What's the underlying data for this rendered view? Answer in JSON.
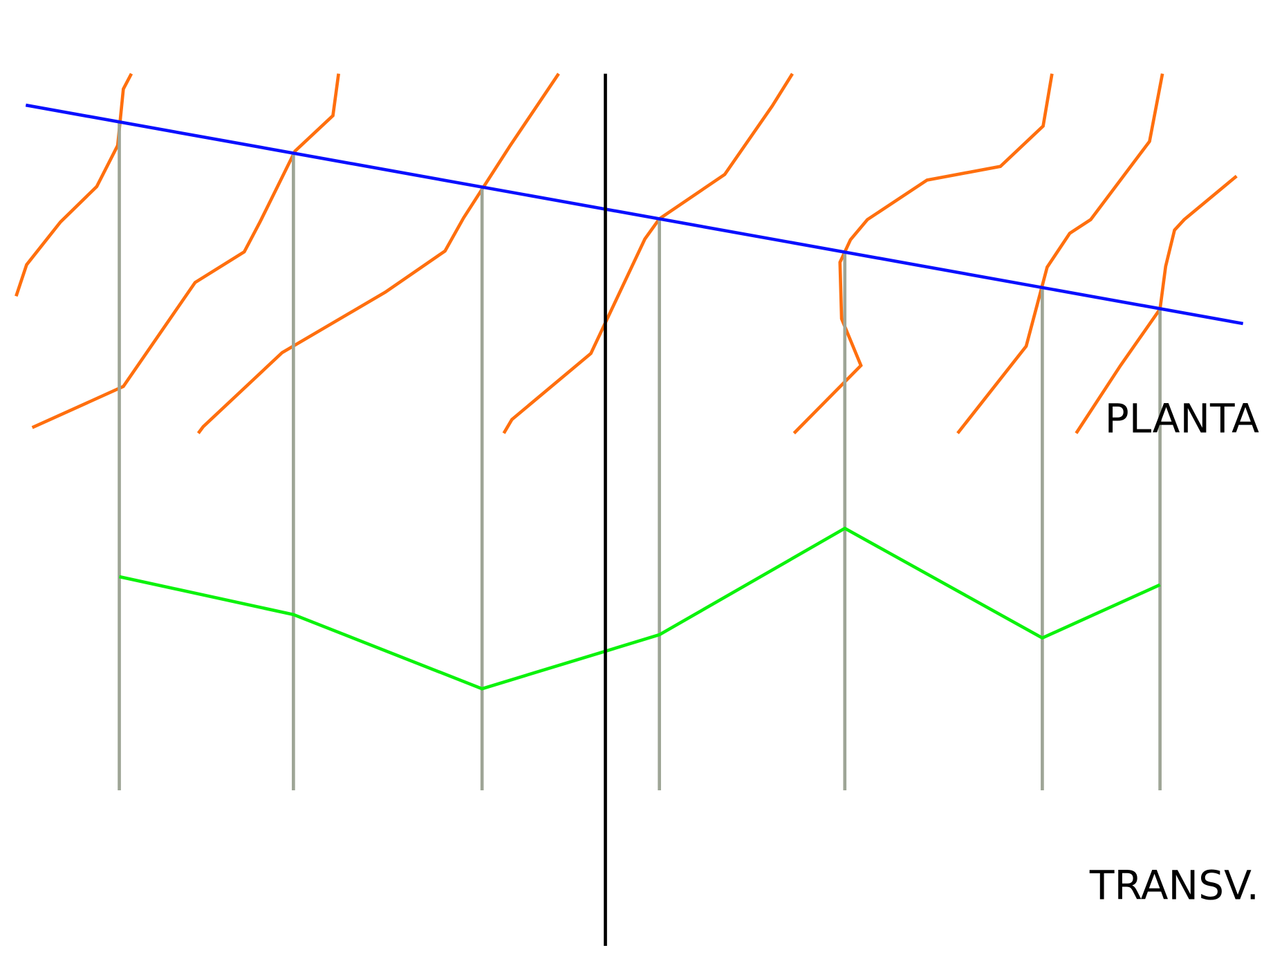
{
  "labels": {
    "plan": "PLANTA",
    "section": "TRANSV."
  }
}
